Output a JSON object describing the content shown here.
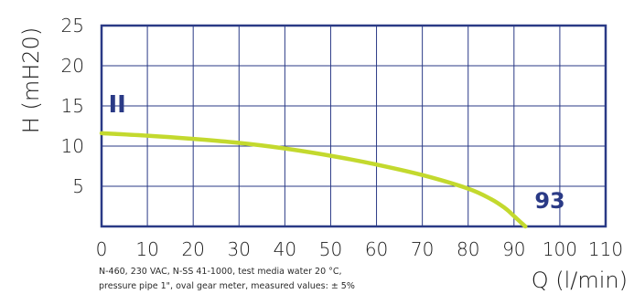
{
  "chart_data": {
    "type": "line",
    "title": "",
    "xlabel": "Q (l/min)",
    "ylabel": "H (mH20)",
    "xlim": [
      0,
      110
    ],
    "ylim": [
      0,
      25
    ],
    "x_ticks": [
      "0",
      "10",
      "20",
      "30",
      "40",
      "50",
      "60",
      "70",
      "80",
      "90",
      "100",
      "110"
    ],
    "y_ticks": [
      "5",
      "10",
      "15",
      "20",
      "25"
    ],
    "grid": true,
    "series": [
      {
        "color": "#c3d92e",
        "x": [
          0,
          10,
          20,
          30,
          40,
          50,
          60,
          70,
          80,
          85,
          88,
          90,
          91.5,
          92.5
        ],
        "y": [
          11.6,
          11.3,
          10.9,
          10.4,
          9.7,
          8.8,
          7.7,
          6.4,
          4.7,
          3.4,
          2.3,
          1.3,
          0.5,
          0
        ]
      }
    ],
    "annotations": [
      {
        "text": "II",
        "x": 1.5,
        "y": 14.2
      },
      {
        "text": "93",
        "x": 94.5,
        "y": 2.3
      }
    ]
  },
  "colors": {
    "frame": "#2a3a86",
    "grid": "#2a3a86",
    "curve": "#c3d92e",
    "annotation": "#2a3a86"
  },
  "footnote": {
    "line1": "N-460, 230 VAC, N-SS 41-1000, test media water 20 °C,",
    "line2": "pressure pipe 1\", oval gear meter, measured values: ± 5%"
  }
}
